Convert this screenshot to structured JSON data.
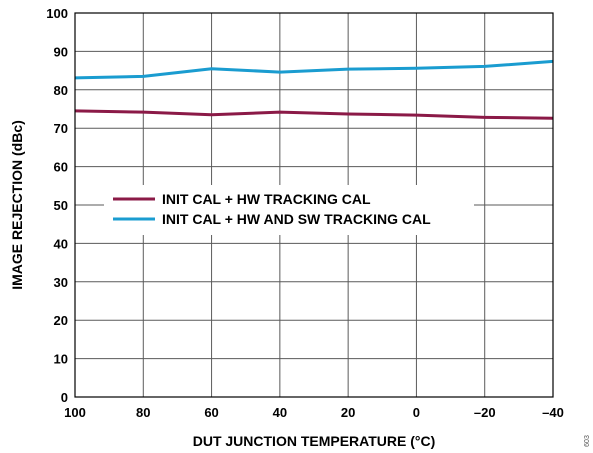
{
  "chart_data": {
    "type": "line",
    "xlabel": "DUT JUNCTION TEMPERATURE (°C)",
    "ylabel": "IMAGE REJECTION (dBc)",
    "x": [
      100,
      80,
      60,
      40,
      20,
      0,
      -20,
      -40
    ],
    "x_tick_labels": [
      "100",
      "80",
      "60",
      "40",
      "20",
      "0",
      "–20",
      "–40"
    ],
    "xlim": [
      100,
      -40
    ],
    "ylim": [
      0,
      100
    ],
    "y_ticks": [
      0,
      10,
      20,
      30,
      40,
      50,
      60,
      70,
      80,
      90,
      100
    ],
    "grid": true,
    "legend_position": "center-left",
    "series": [
      {
        "name": "INIT CAL + HW TRACKING CAL",
        "color": "#8b1a47",
        "values": [
          74.5,
          74.2,
          73.5,
          74.2,
          73.7,
          73.4,
          72.8,
          72.6
        ]
      },
      {
        "name": "INIT CAL + HW AND SW TRACKING CAL",
        "color": "#1a9cd0",
        "values": [
          83.1,
          83.5,
          85.5,
          84.6,
          85.4,
          85.6,
          86.1,
          87.4
        ]
      }
    ],
    "side_note": "603"
  }
}
